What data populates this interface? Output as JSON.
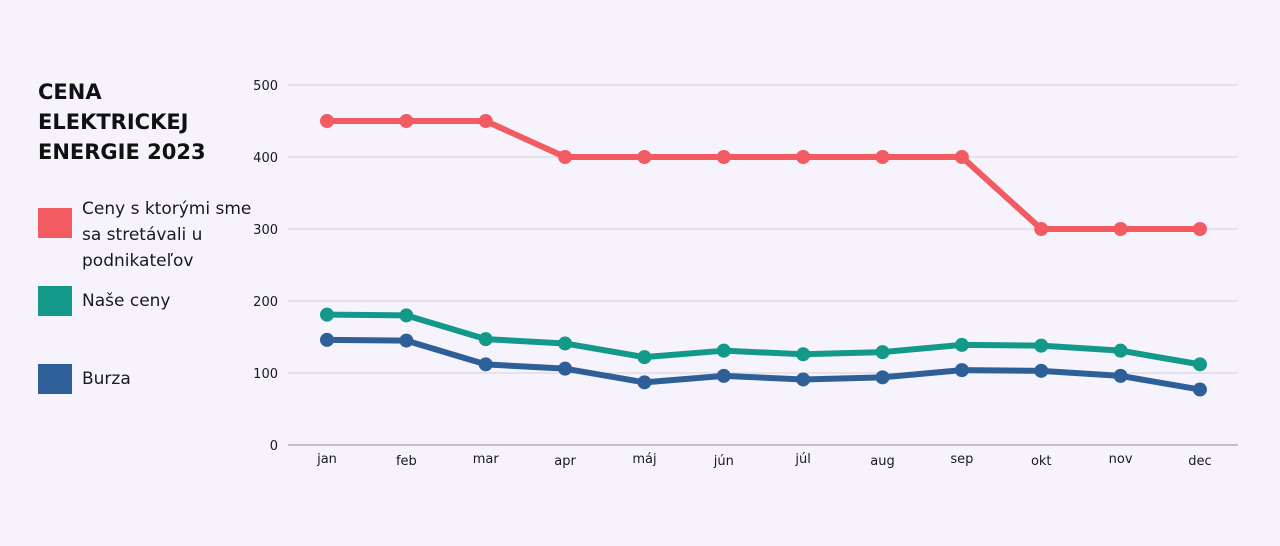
{
  "chart_data": {
    "type": "line",
    "title": "CENA ELEKTRICKEJ ENERGIE 2023",
    "categories": [
      "jan",
      "feb",
      "mar",
      "apr",
      "máj",
      "jún",
      "júl",
      "aug",
      "sep",
      "okt",
      "nov",
      "dec"
    ],
    "ylim": [
      0,
      500
    ],
    "yticks": [
      "0",
      "100",
      "200",
      "300",
      "400",
      "500"
    ],
    "grid": true,
    "legend_position": "left",
    "series": [
      {
        "name": "Ceny s ktorými sme sa stretávali u podnikateľov",
        "color": "#f15b61",
        "values": [
          450,
          450,
          450,
          400,
          400,
          400,
          400,
          400,
          400,
          300,
          300,
          300
        ]
      },
      {
        "name": "Naše ceny",
        "color": "#13998a",
        "values": [
          181,
          180,
          147,
          141,
          122,
          131,
          126,
          129,
          139,
          138,
          131,
          112
        ]
      },
      {
        "name": "Burza",
        "color": "#2f5f98",
        "values": [
          146,
          145,
          112,
          106,
          87,
          96,
          91,
          94,
          104,
          103,
          96,
          77
        ]
      }
    ]
  }
}
